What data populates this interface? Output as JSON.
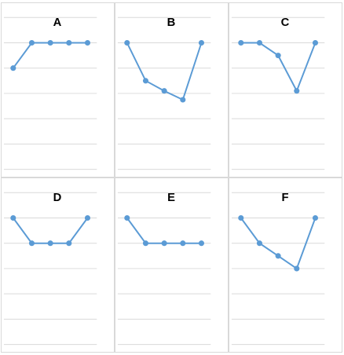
{
  "colors": {
    "series": "#5b9bd5"
  },
  "chart_data": [
    {
      "type": "line",
      "title": "A",
      "x": [
        1,
        2,
        3,
        4,
        5
      ],
      "values": [
        4,
        5,
        5,
        5,
        5
      ],
      "ylim": [
        0,
        6
      ],
      "grid": true
    },
    {
      "type": "line",
      "title": "B",
      "x": [
        1,
        2,
        3,
        4,
        5
      ],
      "values": [
        5,
        3.5,
        3.1,
        2.75,
        5
      ],
      "ylim": [
        0,
        6
      ],
      "grid": true
    },
    {
      "type": "line",
      "title": "C",
      "x": [
        1,
        2,
        3,
        4,
        5
      ],
      "values": [
        5,
        5,
        4.5,
        3.1,
        5
      ],
      "ylim": [
        0,
        6
      ],
      "grid": true
    },
    {
      "type": "line",
      "title": "D",
      "x": [
        1,
        2,
        3,
        4,
        5
      ],
      "values": [
        5,
        4,
        4,
        4,
        5
      ],
      "ylim": [
        0,
        6
      ],
      "grid": true
    },
    {
      "type": "line",
      "title": "E",
      "x": [
        1,
        2,
        3,
        4,
        5
      ],
      "values": [
        5,
        4,
        4,
        4,
        4
      ],
      "ylim": [
        0,
        6
      ],
      "grid": true
    },
    {
      "type": "line",
      "title": "F",
      "x": [
        1,
        2,
        3,
        4,
        5
      ],
      "values": [
        5,
        4,
        3.5,
        3,
        5
      ],
      "ylim": [
        0,
        6
      ],
      "grid": true
    }
  ]
}
